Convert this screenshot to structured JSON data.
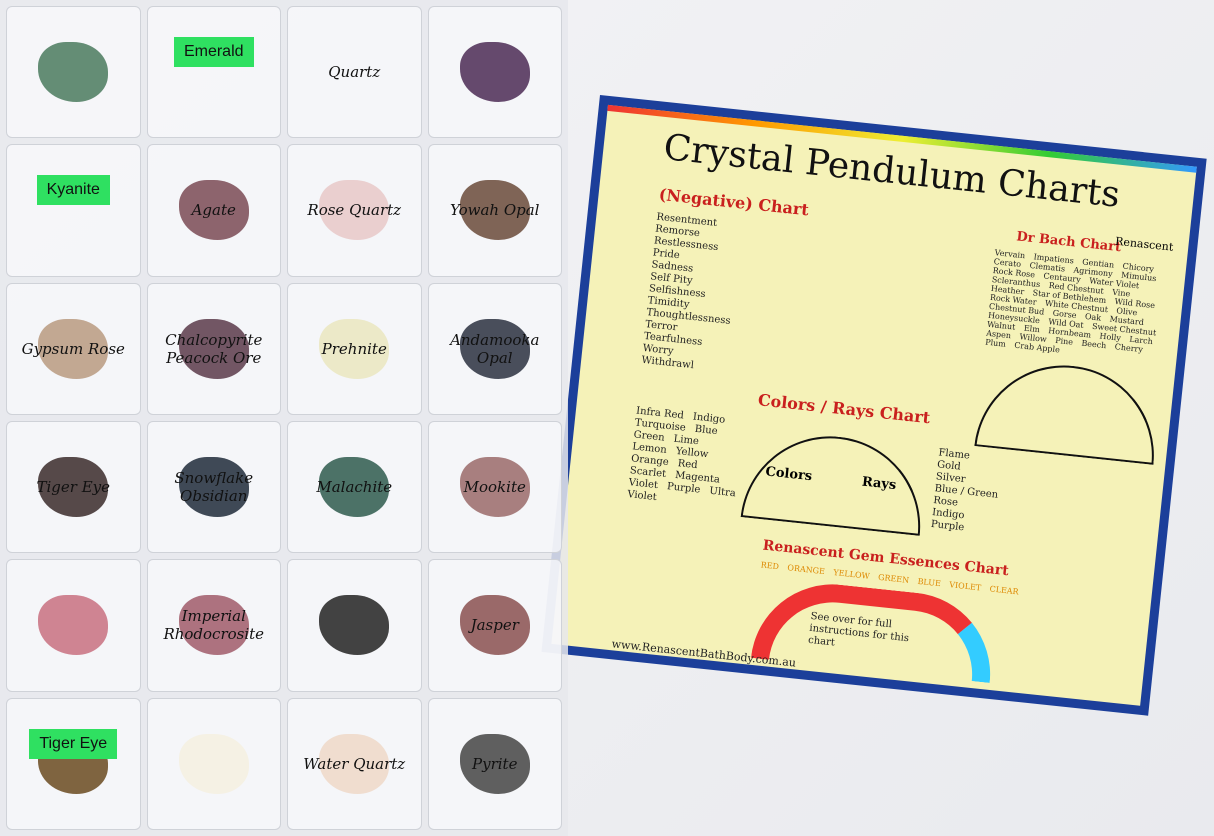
{
  "chart": {
    "title": "Crystal Pendulum Charts",
    "negative_title": "(Negative) Chart",
    "negative_items": [
      "Resentment",
      "Remorse",
      "Restlessness",
      "Pride",
      "Sadness",
      "Self Pity",
      "Selfishness",
      "Timidity",
      "Thoughtlessness",
      "Terror",
      "Tearfulness",
      "Worry",
      "Withdrawl"
    ],
    "colors_title": "Colors / Rays Chart",
    "colors_label": "Colors",
    "rays_label": "Rays",
    "colors_items": [
      "Infra Red",
      "Indigo",
      "Turquoise",
      "Blue",
      "Green",
      "Lime",
      "Lemon",
      "Yellow",
      "Orange",
      "Red",
      "Scarlet",
      "Magenta",
      "Violet",
      "Purple",
      "Ultra Violet"
    ],
    "rays_items": [
      "Flame",
      "Gold",
      "Silver",
      "Blue / Green",
      "Rose",
      "Indigo",
      "Purple"
    ],
    "bach_title": "Dr Bach Chart",
    "bach_items": [
      "Vervain",
      "Impatiens",
      "Gentian",
      "Chicory",
      "Cerato",
      "Clematis",
      "Agrimony",
      "Mimulus",
      "Rock Rose",
      "Centaury",
      "Water Violet",
      "Scleranthus",
      "Red Chestnut",
      "Vine",
      "Heather",
      "Star of Bethlehem",
      "Wild Rose",
      "Rock Water",
      "White Chestnut",
      "Olive",
      "Chestnut Bud",
      "Gorse",
      "Oak",
      "Mustard",
      "Honeysuckle",
      "Wild Oat",
      "Sweet Chestnut",
      "Walnut",
      "Elm",
      "Hornbeam",
      "Holly",
      "Larch",
      "Aspen",
      "Willow",
      "Pine",
      "Beech",
      "Cherry Plum",
      "Crab Apple"
    ],
    "gem_title": "Renascent Gem Essences Chart",
    "gem_colors": [
      "RED",
      "ORANGE",
      "YELLOW",
      "GREEN",
      "BLUE",
      "VIOLET",
      "CLEAR"
    ],
    "gem_note": "See over for full instructions for this chart",
    "brand": "Renascent",
    "website": "www.RenascentBathBody.com.au"
  },
  "tray": {
    "pockets": [
      {
        "label": "",
        "color": "#4a7a5e"
      },
      {
        "label": "Emerald",
        "tag": true,
        "color": ""
      },
      {
        "label": "Quartz",
        "color": ""
      },
      {
        "label": "",
        "color": "#4b2a55"
      },
      {
        "label": "Kyanite",
        "tag": true,
        "color": ""
      },
      {
        "label": "Agate",
        "color": "#7a4a55"
      },
      {
        "label": "Rose Quartz",
        "color": "#e8c8c8"
      },
      {
        "label": "Yowah Opal",
        "color": "#6a4a3a"
      },
      {
        "label": "Gypsum Rose",
        "color": "#b89a80"
      },
      {
        "label": "Chalcopyrite Peacock Ore",
        "color": "#5a3a4a"
      },
      {
        "label": "Prehnite",
        "color": "#eae6c0"
      },
      {
        "label": "Andamooka Opal",
        "color": "#2a3040"
      },
      {
        "label": "Tiger Eye",
        "color": "#3a2a2a"
      },
      {
        "label": "Snowflake Obsidian",
        "color": "#1e2a3a"
      },
      {
        "label": "Malachite",
        "color": "#2e5a4e"
      },
      {
        "label": "Mookite",
        "color": "#9a6a6a"
      },
      {
        "label": "",
        "color": "#c87080"
      },
      {
        "label": "Imperial Rhodocrosite",
        "color": "#a05a6a"
      },
      {
        "label": "",
        "color": "#222"
      },
      {
        "label": "Jasper",
        "color": "#8a5050"
      },
      {
        "label": "Tiger Eye",
        "tag": true,
        "color": "#6a4a20"
      },
      {
        "label": "",
        "color": "#f5f0e0"
      },
      {
        "label": "Water Quartz",
        "color": "#eed8c8"
      },
      {
        "label": "Pyrite",
        "color": "#444"
      }
    ]
  }
}
